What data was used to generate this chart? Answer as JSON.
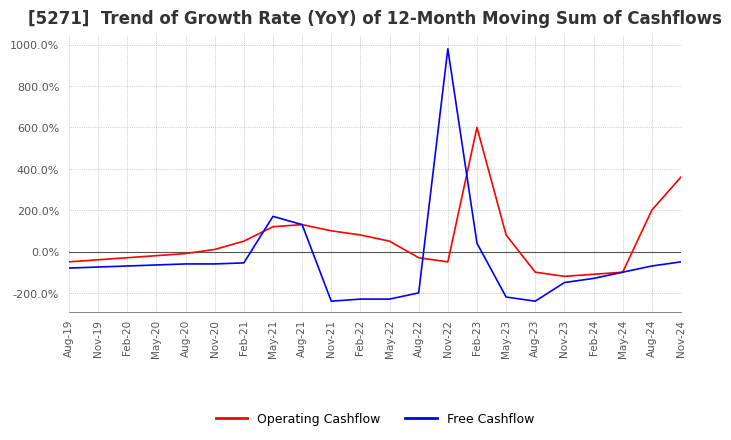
{
  "title": "[5271]  Trend of Growth Rate (YoY) of 12-Month Moving Sum of Cashflows",
  "title_fontsize": 12,
  "ylim": [
    -290,
    1050
  ],
  "yticks": [
    -200,
    0,
    200,
    400,
    600,
    800,
    1000
  ],
  "background_color": "#ffffff",
  "grid_color": "#aaaaaa",
  "legend_labels": [
    "Operating Cashflow",
    "Free Cashflow"
  ],
  "legend_colors": [
    "#ff0000",
    "#0000ff"
  ],
  "x_labels": [
    "Aug-19",
    "Nov-19",
    "Feb-20",
    "May-20",
    "Aug-20",
    "Nov-20",
    "Feb-21",
    "May-21",
    "Aug-21",
    "Nov-21",
    "Feb-22",
    "May-22",
    "Aug-22",
    "Nov-22",
    "Feb-23",
    "May-23",
    "Aug-23",
    "Nov-23",
    "Feb-24",
    "May-24",
    "Aug-24",
    "Nov-24"
  ],
  "operating_cf": [
    -50,
    -40,
    -30,
    -20,
    -10,
    10,
    50,
    120,
    130,
    100,
    80,
    50,
    -30,
    -50,
    600,
    80,
    -100,
    -120,
    -110,
    -100,
    200,
    360
  ],
  "free_cf": [
    -80,
    -75,
    -70,
    -65,
    -60,
    -60,
    -55,
    170,
    130,
    -240,
    -230,
    -230,
    -200,
    980,
    40,
    -220,
    -240,
    -150,
    -130,
    -100,
    -70,
    -50
  ]
}
